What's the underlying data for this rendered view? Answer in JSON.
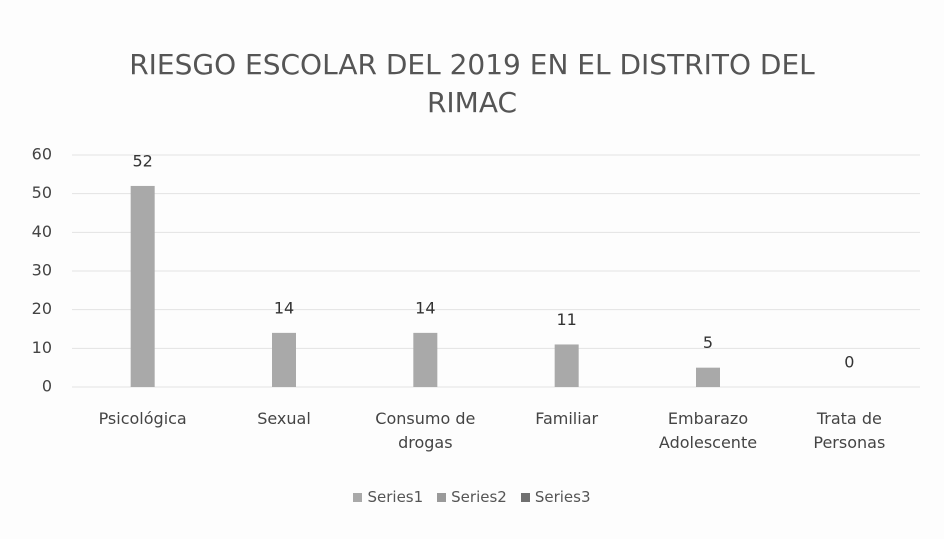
{
  "chart_data": {
    "type": "bar",
    "title": "RIESGO ESCOLAR DEL 2019 EN EL DISTRITO DEL RIMAC",
    "categories": [
      "Psicológica",
      "Sexual",
      "Consumo de drogas",
      "Familiar",
      "Embarazo Adolescente",
      "Trata de Personas"
    ],
    "series": [
      {
        "name": "Series1",
        "color": "#a9a9a9",
        "values": [
          52,
          14,
          14,
          11,
          5,
          0
        ]
      },
      {
        "name": "Series2",
        "color": "#9a9a9a",
        "values": [
          null,
          null,
          null,
          null,
          null,
          null
        ]
      },
      {
        "name": "Series3",
        "color": "#707070",
        "values": [
          null,
          null,
          null,
          null,
          null,
          null
        ]
      }
    ],
    "ylim": [
      0,
      60
    ],
    "yticks": [
      0,
      10,
      20,
      30,
      40,
      50,
      60
    ],
    "grid": true,
    "legend": "bottom"
  }
}
